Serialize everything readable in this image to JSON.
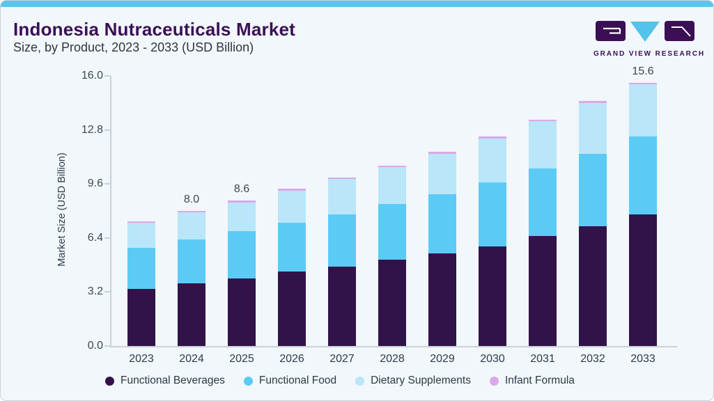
{
  "header": {
    "title": "Indonesia Nutraceuticals Market",
    "subtitle": "Size, by Product, 2023 - 2033 (USD Billion)",
    "brand_name": "GRAND VIEW RESEARCH"
  },
  "colors": {
    "card_background": "#f1f7fa",
    "top_strip": "#5ac6ee",
    "title_purple": "#3b0f56",
    "subtitle_text": "#32353e",
    "axis_line": "#c9d2d9",
    "tick_text": "#3c4654",
    "logo_purple": "#3b0f56",
    "logo_cyan": "#54c3ea"
  },
  "chart_data": {
    "type": "bar",
    "stacked": true,
    "title": "Indonesia Nutraceuticals Market Size, by Product, 2023 - 2033 (USD Billion)",
    "categories": [
      "2023",
      "2024",
      "2025",
      "2026",
      "2027",
      "2028",
      "2029",
      "2030",
      "2031",
      "2032",
      "2033"
    ],
    "series": [
      {
        "name": "Functional Beverages",
        "color": "#321349",
        "values": [
          3.4,
          3.7,
          4.0,
          4.4,
          4.7,
          5.1,
          5.5,
          5.9,
          6.5,
          7.1,
          7.8
        ]
      },
      {
        "name": "Functional Food",
        "color": "#5bcbf5",
        "values": [
          2.4,
          2.6,
          2.8,
          2.9,
          3.1,
          3.3,
          3.5,
          3.8,
          4.0,
          4.3,
          4.6
        ]
      },
      {
        "name": "Dietary Supplements",
        "color": "#b9e6f8",
        "values": [
          1.5,
          1.6,
          1.7,
          1.9,
          2.1,
          2.2,
          2.4,
          2.6,
          2.8,
          3.0,
          3.1
        ]
      },
      {
        "name": "Infant Formula",
        "color": "#d9a9e8",
        "values": [
          0.1,
          0.1,
          0.1,
          0.1,
          0.1,
          0.1,
          0.1,
          0.1,
          0.1,
          0.1,
          0.1
        ]
      }
    ],
    "totals": [
      7.4,
      8.0,
      8.6,
      9.3,
      10.0,
      10.7,
      11.5,
      12.4,
      13.4,
      14.5,
      15.6
    ],
    "value_labels": [
      "",
      "8.0",
      "8.6",
      "",
      "",
      "",
      "",
      "",
      "",
      "",
      "15.6"
    ],
    "ylabel": "Market Size (USD Billion)",
    "ytick_labels": [
      "0.0",
      "3.2",
      "6.4",
      "9.6",
      "12.8",
      "16.0"
    ],
    "ylim": [
      0,
      16
    ],
    "grid": false,
    "legend_position": "bottom"
  }
}
